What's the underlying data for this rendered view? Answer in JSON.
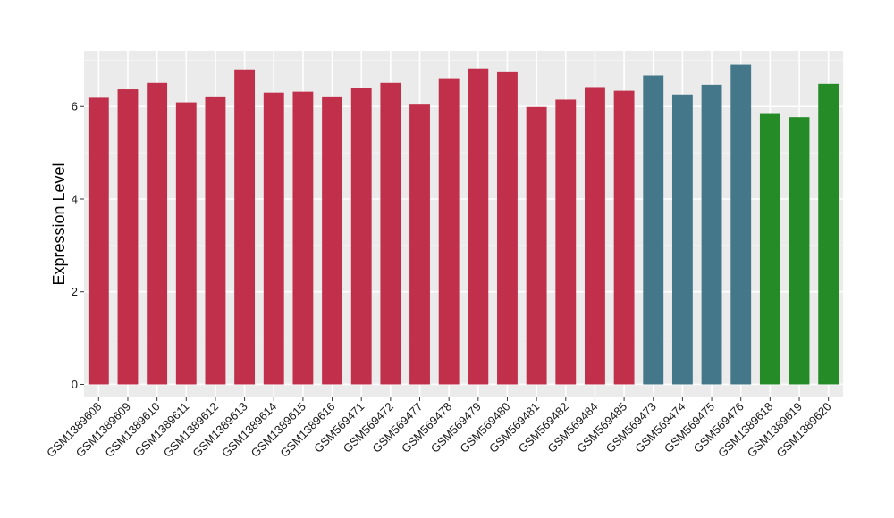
{
  "chart_data": {
    "type": "bar",
    "ylabel": "Expression Level",
    "xlabel": "",
    "ylim": [
      -0.28,
      7.2
    ],
    "yticks": [
      0,
      2,
      4,
      6
    ],
    "grid": true,
    "legend": "none",
    "categories": [
      "GSM1389608",
      "GSM1389609",
      "GSM1389610",
      "GSM1389611",
      "GSM1389612",
      "GSM1389613",
      "GSM1389614",
      "GSM1389615",
      "GSM1389616",
      "GSM569471",
      "GSM569472",
      "GSM569477",
      "GSM569478",
      "GSM569479",
      "GSM569480",
      "GSM569481",
      "GSM569482",
      "GSM569484",
      "GSM569485",
      "GSM569473",
      "GSM569474",
      "GSM569475",
      "GSM569476",
      "GSM1389618",
      "GSM1389619",
      "GSM1389620"
    ],
    "values": [
      6.19,
      6.37,
      6.51,
      6.09,
      6.2,
      6.8,
      6.3,
      6.32,
      6.2,
      6.39,
      6.51,
      6.04,
      6.61,
      6.82,
      6.74,
      5.99,
      6.15,
      6.42,
      6.34,
      6.67,
      6.26,
      6.47,
      6.9,
      5.84,
      5.77,
      6.49
    ],
    "bar_colors": [
      "#c0304a",
      "#c0304a",
      "#c0304a",
      "#c0304a",
      "#c0304a",
      "#c0304a",
      "#c0304a",
      "#c0304a",
      "#c0304a",
      "#c0304a",
      "#c0304a",
      "#c0304a",
      "#c0304a",
      "#c0304a",
      "#c0304a",
      "#c0304a",
      "#c0304a",
      "#c0304a",
      "#c0304a",
      "#437789",
      "#437789",
      "#437789",
      "#437789",
      "#248b27",
      "#248b27",
      "#248b27"
    ]
  },
  "colors": {
    "panel_background": "#ebebeb",
    "grid_major": "#ffffff",
    "grid_minor": "#f5f5f5",
    "tick": "#333333"
  }
}
